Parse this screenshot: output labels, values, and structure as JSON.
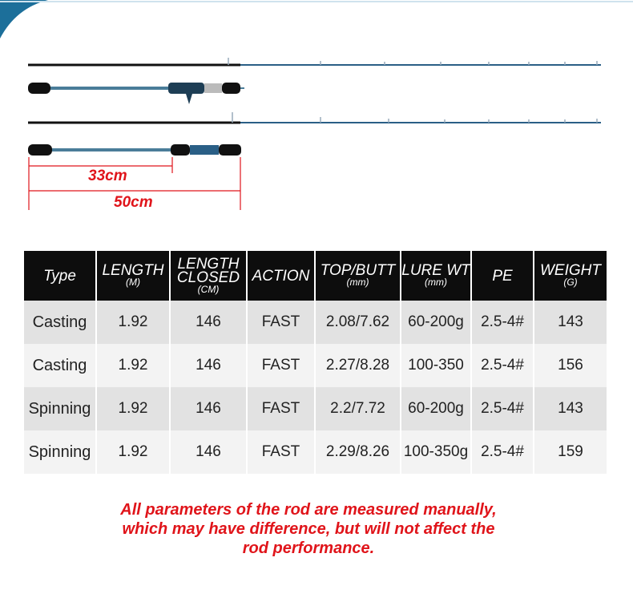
{
  "measurements": {
    "short": "33cm",
    "long": "50cm"
  },
  "table": {
    "header": [
      {
        "lines": [
          "Type"
        ]
      },
      {
        "lines": [
          "LENGTH"
        ],
        "unit": "(M)"
      },
      {
        "lines": [
          "LENGTH",
          "CLOSED"
        ],
        "unit": "(CM)"
      },
      {
        "lines": [
          "ACTION"
        ]
      },
      {
        "lines": [
          "TOP/BUTT"
        ],
        "unit": "(mm)"
      },
      {
        "lines": [
          "LURE WT"
        ],
        "unit": "(mm)"
      },
      {
        "lines": [
          "PE"
        ]
      },
      {
        "lines": [
          "WEIGHT"
        ],
        "unit": "(G)"
      }
    ],
    "rows": [
      [
        "Casting",
        "1.92",
        "146",
        "FAST",
        "2.08/7.62",
        "60-200g",
        "2.5-4#",
        "143"
      ],
      [
        "Casting",
        "1.92",
        "146",
        "FAST",
        "2.27/8.28",
        "100-350",
        "2.5-4#",
        "156"
      ],
      [
        "Spinning",
        "1.92",
        "146",
        "FAST",
        "2.2/7.72",
        "60-200g",
        "2.5-4#",
        "143"
      ],
      [
        "Spinning",
        "1.92",
        "146",
        "FAST",
        "2.29/8.26",
        "100-350g",
        "2.5-4#",
        "159"
      ]
    ]
  },
  "note": [
    "All parameters of the rod are measured manually,",
    "which may have difference, but will not affect the",
    "rod performance."
  ]
}
